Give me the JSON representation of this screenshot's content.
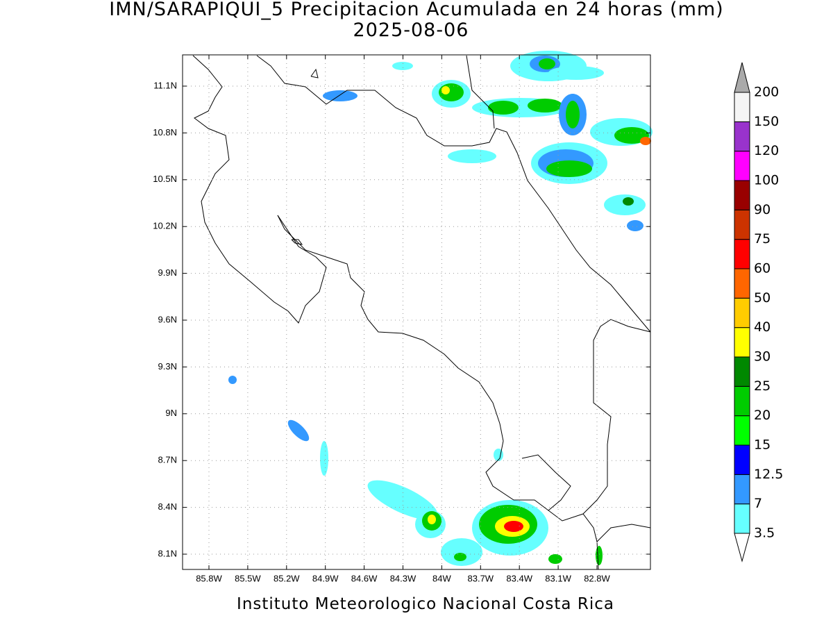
{
  "title": "IMN/SARAPIQUI_5 Precipitacion Acumulada en 24 horas (mm)",
  "subtitle": "2025-08-06",
  "footer": "Instituto Meteorologico Nacional Costa Rica",
  "x_ticks": [
    "85.8W",
    "85.5W",
    "85.2W",
    "84.9W",
    "84.6W",
    "84.3W",
    "84W",
    "83.7W",
    "83.4W",
    "83.1W",
    "82.8W"
  ],
  "y_ticks": [
    "11.1N",
    "10.8N",
    "10.5N",
    "10.2N",
    "9.9N",
    "9.6N",
    "9.3N",
    "9N",
    "8.7N",
    "8.4N",
    "8.1N"
  ],
  "colorbar": {
    "levels": [
      3.5,
      7,
      12.5,
      15,
      20,
      25,
      30,
      40,
      50,
      60,
      75,
      90,
      100,
      120,
      150,
      200
    ],
    "colors": [
      "#66ffff",
      "#3399ff",
      "#0000ff",
      "#00ff00",
      "#00cc00",
      "#008800",
      "#ffff00",
      "#ffcc00",
      "#ff6600",
      "#ff0000",
      "#cc3300",
      "#990000",
      "#ff00ff",
      "#9933cc",
      "#f5f5f5"
    ],
    "under_color": "#ffffff",
    "over_color": "#aaaaaa"
  }
}
